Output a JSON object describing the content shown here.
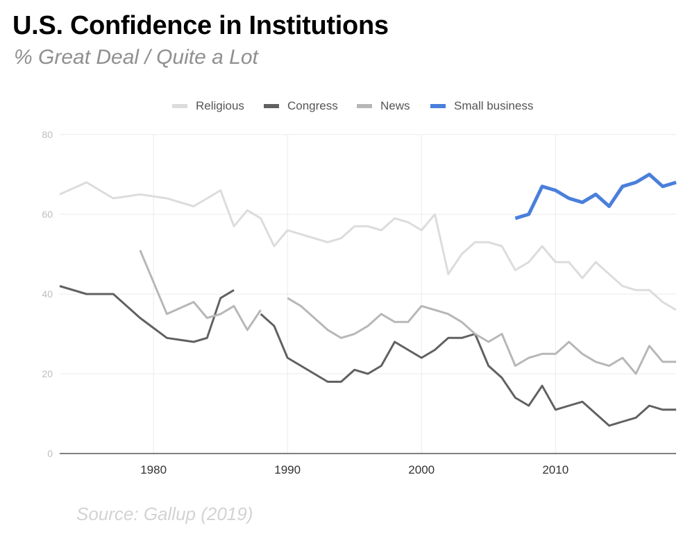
{
  "header": {
    "title": "U.S. Confidence in Institutions",
    "subtitle": "% Great Deal / Quite a Lot"
  },
  "footer": {
    "source": "Source: Gallup (2019)"
  },
  "chart_data": {
    "type": "line",
    "title": "U.S. Confidence in Institutions",
    "subtitle": "% Great Deal / Quite a Lot",
    "xlabel": "",
    "ylabel": "",
    "xlim": [
      1973,
      2019
    ],
    "ylim": [
      0,
      80
    ],
    "x_ticks": [
      1980,
      1990,
      2000,
      2010
    ],
    "y_ticks": [
      0,
      20,
      40,
      60,
      80
    ],
    "grid": true,
    "legend_position": "top",
    "series": [
      {
        "name": "Religious",
        "color": "#dcdcdc",
        "points": [
          [
            1973,
            65
          ],
          [
            1975,
            68
          ],
          [
            1977,
            64
          ],
          [
            1979,
            65
          ],
          [
            1981,
            64
          ],
          [
            1983,
            62
          ],
          [
            1985,
            66
          ],
          [
            1986,
            57
          ],
          [
            1987,
            61
          ],
          [
            1988,
            59
          ],
          [
            1989,
            52
          ],
          [
            1990,
            56
          ],
          [
            1991,
            55
          ],
          [
            1993,
            53
          ],
          [
            1994,
            54
          ],
          [
            1995,
            57
          ],
          [
            1996,
            57
          ],
          [
            1997,
            56
          ],
          [
            1998,
            59
          ],
          [
            1999,
            58
          ],
          [
            2000,
            56
          ],
          [
            2001,
            60
          ],
          [
            2002,
            45
          ],
          [
            2003,
            50
          ],
          [
            2004,
            53
          ],
          [
            2005,
            53
          ],
          [
            2006,
            52
          ],
          [
            2007,
            46
          ],
          [
            2008,
            48
          ],
          [
            2009,
            52
          ],
          [
            2010,
            48
          ],
          [
            2011,
            48
          ],
          [
            2012,
            44
          ],
          [
            2013,
            48
          ],
          [
            2014,
            45
          ],
          [
            2015,
            42
          ],
          [
            2016,
            41
          ],
          [
            2017,
            41
          ],
          [
            2018,
            38
          ],
          [
            2019,
            36
          ]
        ]
      },
      {
        "name": "Congress",
        "color": "#616161",
        "points": [
          [
            1973,
            42
          ],
          [
            1975,
            40
          ],
          [
            1977,
            40
          ],
          [
            1979,
            34
          ],
          [
            1981,
            29
          ],
          [
            1983,
            28
          ],
          [
            1984,
            29
          ],
          [
            1985,
            39
          ],
          [
            1986,
            41
          ],
          null,
          [
            1988,
            35
          ],
          [
            1989,
            32
          ],
          [
            1990,
            24
          ],
          [
            1991,
            22
          ],
          [
            1993,
            18
          ],
          [
            1994,
            18
          ],
          [
            1995,
            21
          ],
          [
            1996,
            20
          ],
          [
            1997,
            22
          ],
          [
            1998,
            28
          ],
          [
            1999,
            26
          ],
          [
            2000,
            24
          ],
          [
            2001,
            26
          ],
          [
            2002,
            29
          ],
          [
            2003,
            29
          ],
          [
            2004,
            30
          ],
          [
            2005,
            22
          ],
          [
            2006,
            19
          ],
          [
            2007,
            14
          ],
          [
            2008,
            12
          ],
          [
            2009,
            17
          ],
          [
            2010,
            11
          ],
          [
            2011,
            12
          ],
          [
            2012,
            13
          ],
          [
            2013,
            10
          ],
          [
            2014,
            7
          ],
          [
            2015,
            8
          ],
          [
            2016,
            9
          ],
          [
            2017,
            12
          ],
          [
            2018,
            11
          ],
          [
            2019,
            11
          ]
        ]
      },
      {
        "name": "News",
        "color": "#b7b7b7",
        "points": [
          [
            1979,
            51
          ],
          [
            1981,
            35
          ],
          [
            1983,
            38
          ],
          [
            1984,
            34
          ],
          [
            1985,
            35
          ],
          [
            1986,
            37
          ],
          [
            1987,
            31
          ],
          [
            1988,
            36
          ],
          null,
          [
            1990,
            39
          ],
          [
            1991,
            37
          ],
          [
            1993,
            31
          ],
          [
            1994,
            29
          ],
          [
            1995,
            30
          ],
          [
            1996,
            32
          ],
          [
            1997,
            35
          ],
          [
            1998,
            33
          ],
          [
            1999,
            33
          ],
          [
            2000,
            37
          ],
          [
            2001,
            36
          ],
          [
            2002,
            35
          ],
          [
            2003,
            33
          ],
          [
            2004,
            30
          ],
          [
            2005,
            28
          ],
          [
            2006,
            30
          ],
          [
            2007,
            22
          ],
          [
            2008,
            24
          ],
          [
            2009,
            25
          ],
          [
            2010,
            25
          ],
          [
            2011,
            28
          ],
          [
            2012,
            25
          ],
          [
            2013,
            23
          ],
          [
            2014,
            22
          ],
          [
            2015,
            24
          ],
          [
            2016,
            20
          ],
          [
            2017,
            27
          ],
          [
            2018,
            23
          ],
          [
            2019,
            23
          ]
        ]
      },
      {
        "name": "Small business",
        "color": "#4a7fdb",
        "points": [
          [
            2007,
            59
          ],
          [
            2008,
            60
          ],
          [
            2009,
            67
          ],
          [
            2010,
            66
          ],
          [
            2011,
            64
          ],
          [
            2012,
            63
          ],
          [
            2013,
            65
          ],
          [
            2014,
            62
          ],
          [
            2015,
            67
          ],
          [
            2016,
            68
          ],
          [
            2017,
            70
          ],
          [
            2018,
            67
          ],
          [
            2019,
            68
          ]
        ]
      }
    ]
  }
}
